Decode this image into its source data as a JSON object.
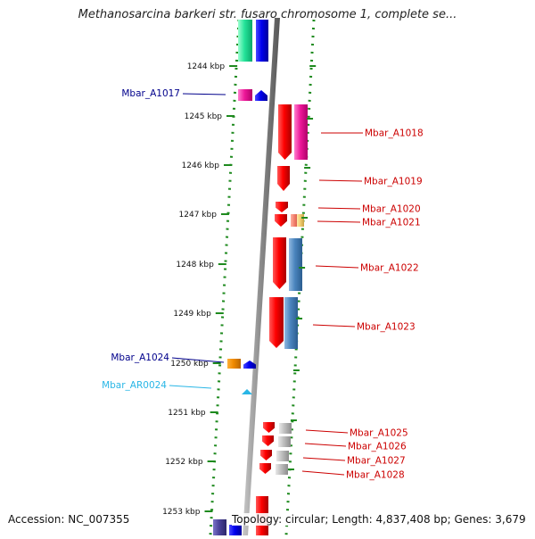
{
  "title": "Methanosarcina barkeri str. fusaro chromosome 1, complete se...",
  "footer": {
    "accession": "Accession: NC_007355",
    "info": "Topology: circular; Length: 4,837,408 bp; Genes: 3,679"
  },
  "ticks": [
    "1244 kbp",
    "1245 kbp",
    "1246 kbp",
    "1247 kbp",
    "1248 kbp",
    "1249 kbp",
    "1250 kbp",
    "1251 kbp",
    "1252 kbp",
    "1253 kbp"
  ],
  "genes_left": [
    {
      "label": "Mbar_A1017",
      "color": "#00008b",
      "kind": "gene"
    },
    {
      "label": "Mbar_A1024",
      "color": "#00008b",
      "kind": "gene"
    },
    {
      "label": "Mbar_AR0024",
      "color": "#29b6e6",
      "kind": "rna"
    }
  ],
  "genes_right": [
    {
      "label": "Mbar_A1018",
      "color": "#cc0000"
    },
    {
      "label": "Mbar_A1019",
      "color": "#cc0000"
    },
    {
      "label": "Mbar_A1020",
      "color": "#cc0000"
    },
    {
      "label": "Mbar_A1021",
      "color": "#cc0000"
    },
    {
      "label": "Mbar_A1022",
      "color": "#cc0000"
    },
    {
      "label": "Mbar_A1023",
      "color": "#cc0000"
    },
    {
      "label": "Mbar_A1025",
      "color": "#cc0000"
    },
    {
      "label": "Mbar_A1026",
      "color": "#cc0000"
    },
    {
      "label": "Mbar_A1027",
      "color": "#cc0000"
    },
    {
      "label": "Mbar_A1028",
      "color": "#cc0000"
    }
  ],
  "colors": {
    "guide_dots": "#1e8a1e",
    "backbone": "#8a8a8a",
    "forward_strand": "#ee0000",
    "reverse_strand": "#0000dd"
  }
}
